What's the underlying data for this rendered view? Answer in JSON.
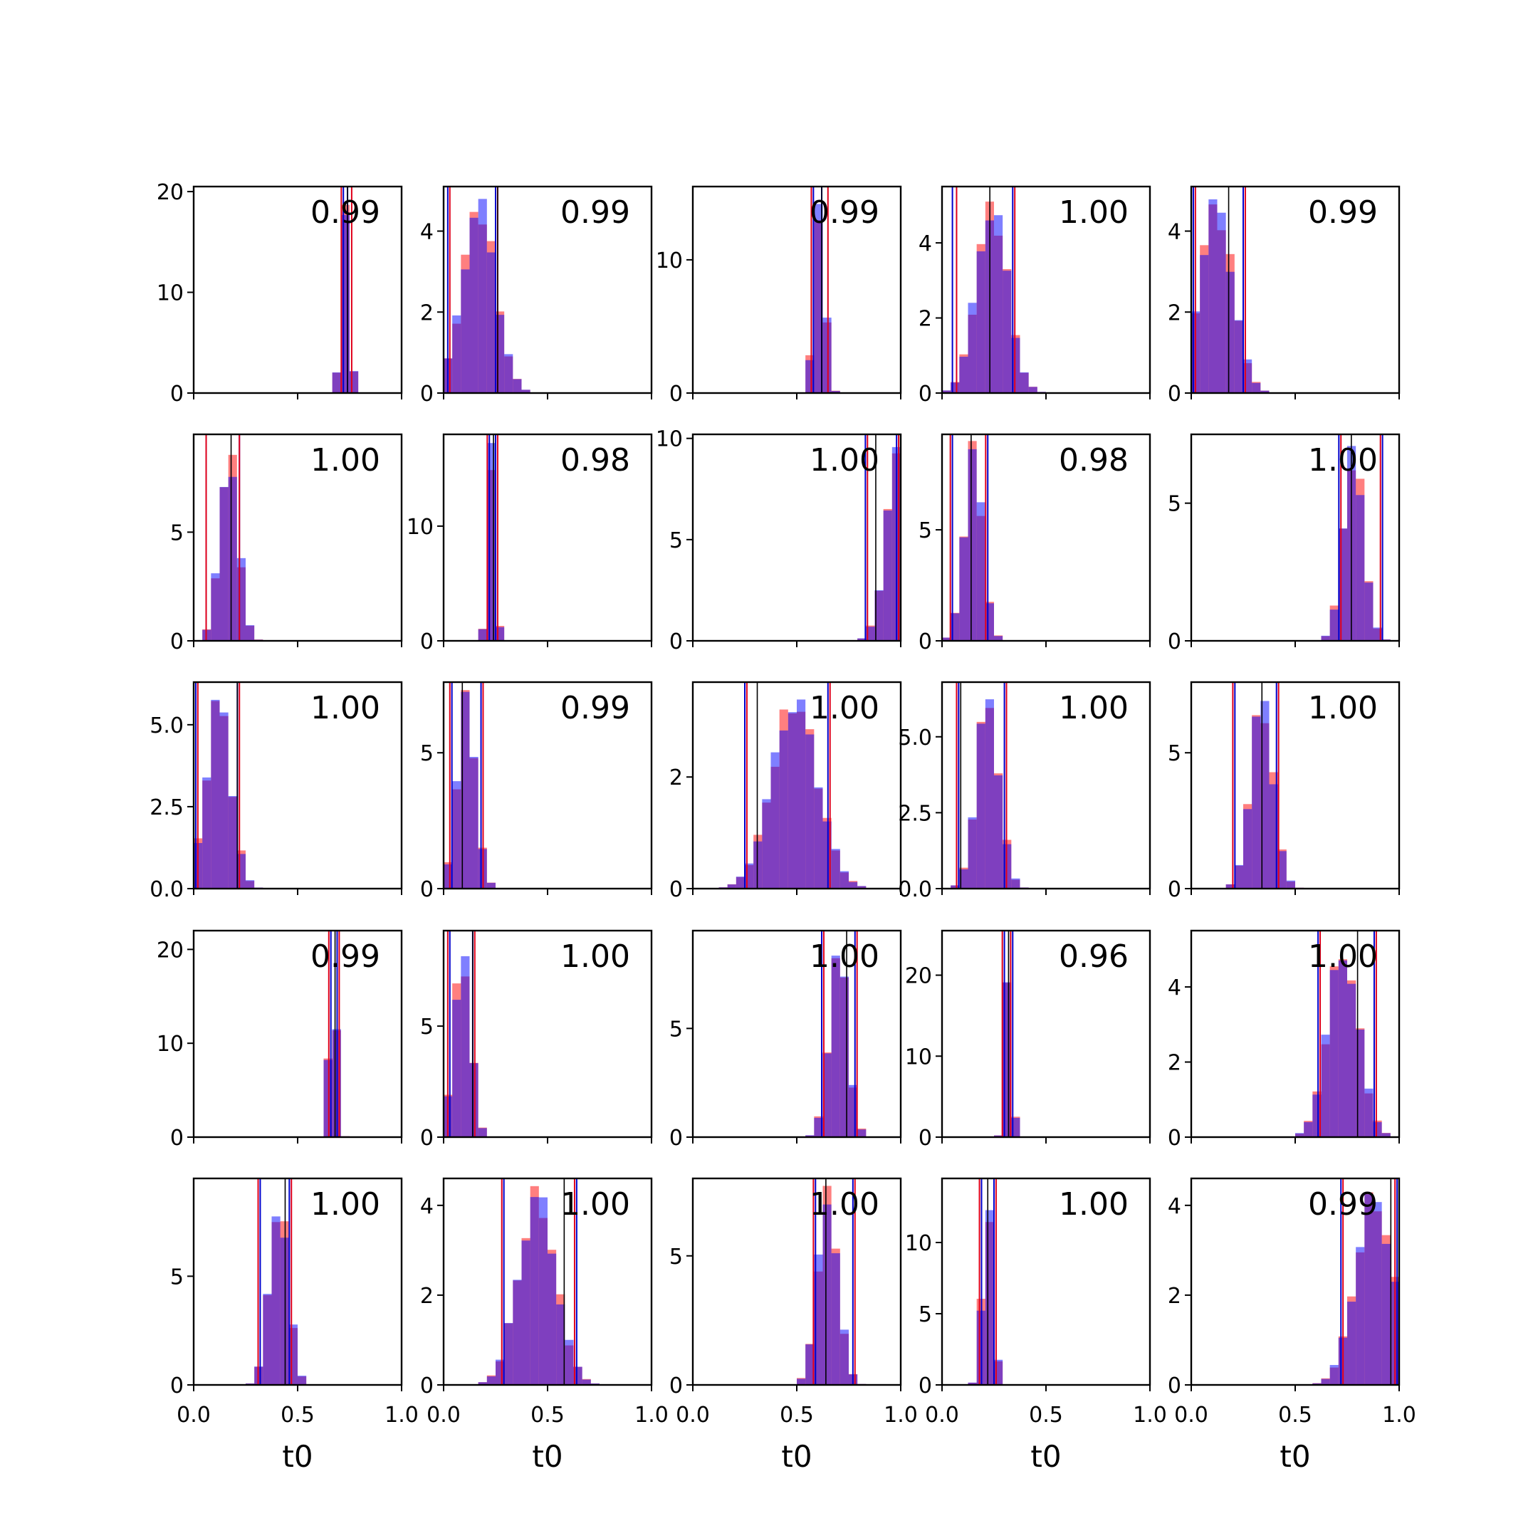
{
  "chart_data": {
    "type": "histogram-grid",
    "rows": 5,
    "cols": 5,
    "xlabel": "t0",
    "xlim": [
      0.0,
      1.0
    ],
    "xticks": [
      "0.0",
      "0.5",
      "1.0"
    ],
    "colors": {
      "hist_red": "#ff0000",
      "hist_blue": "#0000ff",
      "line_red": "#e0001b",
      "line_blue": "#0000cc",
      "line_black": "#000000",
      "overlap": "#7f3fbf"
    },
    "panels": [
      {
        "corr": "0.99",
        "ymax": 20.5,
        "yticks": [
          "0",
          "10",
          "20"
        ],
        "ytickvals": [
          0,
          10,
          20
        ],
        "mu": 0.73,
        "sd": 0.02,
        "lines": {
          "red": [
            0.71,
            0.76
          ],
          "blue": [
            0.72,
            0.74
          ],
          "black": 0.74
        }
      },
      {
        "corr": "0.99",
        "ymax": 5.1,
        "yticks": [
          "0",
          "2",
          "4"
        ],
        "ytickvals": [
          0,
          2,
          4
        ],
        "mu": 0.17,
        "sd": 0.08,
        "lines": {
          "red": [
            0.03,
            0.26
          ],
          "blue": [
            0.02,
            0.25
          ],
          "black": 0.26
        }
      },
      {
        "corr": "0.99",
        "ymax": 15.5,
        "yticks": [
          "0",
          "10"
        ],
        "ytickvals": [
          0,
          10
        ],
        "mu": 0.61,
        "sd": 0.026,
        "lines": {
          "red": [
            0.57,
            0.65
          ],
          "blue": [
            0.58,
            0.62
          ],
          "black": 0.62
        }
      },
      {
        "corr": "1.00",
        "ymax": 5.5,
        "yticks": [
          "0",
          "2",
          "4"
        ],
        "ytickvals": [
          0,
          2,
          4
        ],
        "mu": 0.24,
        "sd": 0.075,
        "lines": {
          "red": [
            0.07,
            0.35
          ],
          "blue": [
            0.05,
            0.34
          ],
          "black": 0.23
        }
      },
      {
        "corr": "0.99",
        "ymax": 5.1,
        "yticks": [
          "0",
          "2",
          "4"
        ],
        "ytickvals": [
          0,
          2,
          4
        ],
        "mu": 0.12,
        "sd": 0.08,
        "lines": {
          "red": [
            0.02,
            0.26
          ],
          "blue": [
            0.01,
            0.25
          ],
          "black": 0.18
        }
      },
      {
        "corr": "1.00",
        "ymax": 9.5,
        "yticks": [
          "0",
          "5"
        ],
        "ytickvals": [
          0,
          5
        ],
        "mu": 0.17,
        "sd": 0.045,
        "lines": {
          "red": [
            0.06,
            0.22
          ],
          "blue": [
            0.06,
            0.22
          ],
          "black": 0.18
        }
      },
      {
        "corr": "0.98",
        "ymax": 18,
        "yticks": [
          "0",
          "10"
        ],
        "ytickvals": [
          0,
          10
        ],
        "mu": 0.23,
        "sd": 0.018,
        "lines": {
          "red": [
            0.21,
            0.26
          ],
          "blue": [
            0.22,
            0.25
          ],
          "black": 0.24
        }
      },
      {
        "corr": "1.00",
        "ymax": 10.2,
        "yticks": [
          "0",
          "5",
          "10"
        ],
        "ytickvals": [
          0,
          5,
          10
        ],
        "mu": 0.99,
        "sd": 0.06,
        "lines": {
          "red": [
            0.84,
            0.99
          ],
          "blue": [
            0.83,
            0.98
          ],
          "black": 0.88
        }
      },
      {
        "corr": "0.98",
        "ymax": 9.3,
        "yticks": [
          "0",
          "5"
        ],
        "ytickvals": [
          0,
          5
        ],
        "mu": 0.15,
        "sd": 0.045,
        "lines": {
          "red": [
            0.04,
            0.21
          ],
          "blue": [
            0.05,
            0.22
          ],
          "black": 0.14
        }
      },
      {
        "corr": "1.00",
        "ymax": 7.5,
        "yticks": [
          "0",
          "5"
        ],
        "ytickvals": [
          0,
          5
        ],
        "mu": 0.78,
        "sd": 0.05,
        "lines": {
          "red": [
            0.72,
            0.91
          ],
          "blue": [
            0.71,
            0.92
          ],
          "black": 0.77
        }
      },
      {
        "corr": "1.00",
        "ymax": 6.3,
        "yticks": [
          "0.0",
          "2.5",
          "5.0"
        ],
        "ytickvals": [
          0,
          2.5,
          5
        ],
        "mu": 0.12,
        "sd": 0.06,
        "lines": {
          "red": [
            0.02,
            0.22
          ],
          "blue": [
            0.01,
            0.21
          ],
          "black": 0.21
        }
      },
      {
        "corr": "0.99",
        "ymax": 7.6,
        "yticks": [
          "0",
          "5"
        ],
        "ytickvals": [
          0,
          5
        ],
        "mu": 0.11,
        "sd": 0.045,
        "lines": {
          "red": [
            0.03,
            0.19
          ],
          "blue": [
            0.04,
            0.18
          ],
          "black": 0.09
        }
      },
      {
        "corr": "1.00",
        "ymax": 3.7,
        "yticks": [
          "0",
          "2"
        ],
        "ytickvals": [
          0,
          2
        ],
        "mu": 0.49,
        "sd": 0.11,
        "lines": {
          "red": [
            0.26,
            0.66
          ],
          "blue": [
            0.25,
            0.65
          ],
          "black": 0.31
        }
      },
      {
        "corr": "1.00",
        "ymax": 6.8,
        "yticks": [
          "0.0",
          "2.5",
          "5.0"
        ],
        "ytickvals": [
          0,
          2.5,
          5
        ],
        "mu": 0.22,
        "sd": 0.055,
        "lines": {
          "red": [
            0.07,
            0.31
          ],
          "blue": [
            0.08,
            0.3
          ],
          "black": 0.09
        }
      },
      {
        "corr": "1.00",
        "ymax": 7.6,
        "yticks": [
          "0",
          "5"
        ],
        "ytickvals": [
          0,
          5
        ],
        "mu": 0.34,
        "sd": 0.055,
        "lines": {
          "red": [
            0.2,
            0.42
          ],
          "blue": [
            0.21,
            0.41
          ],
          "black": 0.34
        }
      },
      {
        "corr": "0.99",
        "ymax": 22,
        "yticks": [
          "0",
          "10",
          "20"
        ],
        "ytickvals": [
          0,
          10,
          20
        ],
        "mu": 0.67,
        "sd": 0.018,
        "lines": {
          "red": [
            0.65,
            0.7
          ],
          "blue": [
            0.66,
            0.69
          ],
          "black": 0.68
        }
      },
      {
        "corr": "1.00",
        "ymax": 9.3,
        "yticks": [
          "0",
          "5"
        ],
        "ytickvals": [
          0,
          5
        ],
        "mu": 0.09,
        "sd": 0.04,
        "lines": {
          "red": [
            0.02,
            0.15
          ],
          "blue": [
            0.03,
            0.14
          ],
          "black": 0.14
        }
      },
      {
        "corr": "1.00",
        "ymax": 9.5,
        "yticks": [
          "0",
          "5"
        ],
        "ytickvals": [
          0,
          5
        ],
        "mu": 0.7,
        "sd": 0.045,
        "lines": {
          "red": [
            0.63,
            0.79
          ],
          "blue": [
            0.62,
            0.78
          ],
          "black": 0.74
        }
      },
      {
        "corr": "0.96",
        "ymax": 25.5,
        "yticks": [
          "0",
          "10",
          "20"
        ],
        "ytickvals": [
          0,
          10,
          20
        ],
        "mu": 0.32,
        "sd": 0.016,
        "lines": {
          "red": [
            0.29,
            0.33
          ],
          "blue": [
            0.3,
            0.34
          ],
          "black": 0.32
        }
      },
      {
        "corr": "1.00",
        "ymax": 5.5,
        "yticks": [
          "0",
          "2",
          "4"
        ],
        "ytickvals": [
          0,
          2,
          4
        ],
        "mu": 0.73,
        "sd": 0.075,
        "lines": {
          "red": [
            0.62,
            0.89
          ],
          "blue": [
            0.61,
            0.88
          ],
          "black": 0.8
        }
      },
      {
        "corr": "1.00",
        "ymax": 9.5,
        "yticks": [
          "0",
          "5"
        ],
        "ytickvals": [
          0,
          5
        ],
        "mu": 0.41,
        "sd": 0.045,
        "lines": {
          "red": [
            0.31,
            0.47
          ],
          "blue": [
            0.32,
            0.46
          ],
          "black": 0.44
        }
      },
      {
        "corr": "1.00",
        "ymax": 4.6,
        "yticks": [
          "0",
          "2",
          "4"
        ],
        "ytickvals": [
          0,
          2,
          4
        ],
        "mu": 0.45,
        "sd": 0.09,
        "lines": {
          "red": [
            0.28,
            0.63
          ],
          "blue": [
            0.29,
            0.64
          ],
          "black": 0.58
        }
      },
      {
        "corr": "1.00",
        "ymax": 8.0,
        "yticks": [
          "0",
          "5"
        ],
        "ytickvals": [
          0,
          5
        ],
        "mu": 0.65,
        "sd": 0.05,
        "lines": {
          "red": [
            0.58,
            0.78
          ],
          "blue": [
            0.59,
            0.77
          ],
          "black": 0.64
        }
      },
      {
        "corr": "1.00",
        "ymax": 14.5,
        "yticks": [
          "0",
          "5",
          "10"
        ],
        "ytickvals": [
          0,
          5,
          10
        ],
        "mu": 0.22,
        "sd": 0.025,
        "lines": {
          "red": [
            0.18,
            0.26
          ],
          "blue": [
            0.19,
            0.25
          ],
          "black": 0.22
        }
      },
      {
        "corr": "0.99",
        "ymax": 4.6,
        "yticks": [
          "0",
          "2",
          "4"
        ],
        "ytickvals": [
          0,
          2,
          4
        ],
        "mu": 0.88,
        "sd": 0.09,
        "lines": {
          "red": [
            0.73,
            0.98
          ],
          "blue": [
            0.72,
            0.99
          ],
          "black": 0.96
        }
      }
    ]
  }
}
